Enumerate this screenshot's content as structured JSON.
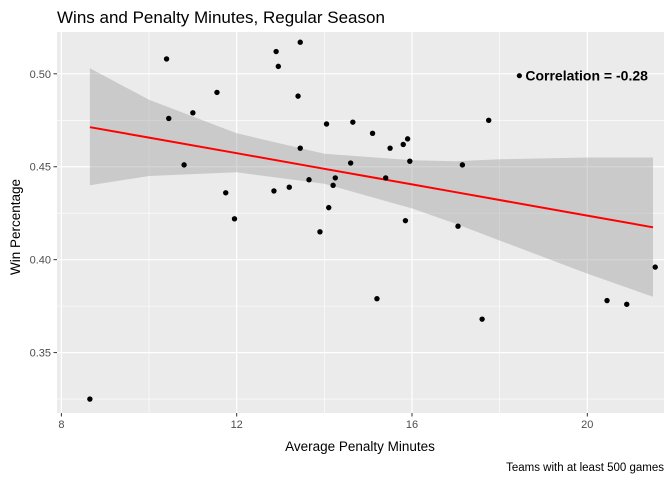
{
  "chart_data": {
    "type": "scatter",
    "title": "Wins and Penalty Minutes, Regular Season",
    "xlabel": "Average Penalty Minutes",
    "ylabel": "Win Percentage",
    "caption": "Teams with at least 500 games",
    "annotation": "Correlation = -0.28",
    "annotation_point": {
      "x": 18.45,
      "y": 0.499
    },
    "xlim": [
      7.9,
      21.75
    ],
    "ylim": [
      0.3175,
      0.5225
    ],
    "x_ticks": [
      8,
      12,
      16,
      20
    ],
    "y_ticks": [
      0.35,
      0.4,
      0.45,
      0.5
    ],
    "x_tick_labels": [
      "8",
      "12",
      "16",
      "20"
    ],
    "y_tick_labels": [
      "0.35",
      "0.40",
      "0.45",
      "0.50"
    ],
    "grid": true,
    "legend": "none",
    "colors": {
      "points": "#000000",
      "fit_line": "#ff0000",
      "ribbon": "#999999",
      "panel": "#ebebeb",
      "grid": "#ffffff"
    },
    "fit": {
      "method": "linear regression with confidence ribbon",
      "x": [
        8.65,
        10,
        12,
        14,
        16,
        17,
        18,
        20,
        21.5
      ],
      "y": [
        0.4713,
        0.4657,
        0.4573,
        0.4489,
        0.4405,
        0.4363,
        0.4321,
        0.4237,
        0.4174
      ],
      "lower": [
        0.44,
        0.445,
        0.447,
        0.4408,
        0.4276,
        0.4193,
        0.4103,
        0.3925,
        0.38
      ],
      "upper": [
        0.503,
        0.486,
        0.468,
        0.457,
        0.4535,
        0.453,
        0.454,
        0.455,
        0.455
      ]
    },
    "points": [
      {
        "x": 8.65,
        "y": 0.325
      },
      {
        "x": 10.4,
        "y": 0.508
      },
      {
        "x": 10.45,
        "y": 0.476
      },
      {
        "x": 10.8,
        "y": 0.451
      },
      {
        "x": 11.0,
        "y": 0.479
      },
      {
        "x": 11.55,
        "y": 0.49
      },
      {
        "x": 11.75,
        "y": 0.436
      },
      {
        "x": 11.95,
        "y": 0.422
      },
      {
        "x": 12.85,
        "y": 0.437
      },
      {
        "x": 12.9,
        "y": 0.512
      },
      {
        "x": 12.95,
        "y": 0.504
      },
      {
        "x": 13.2,
        "y": 0.439
      },
      {
        "x": 13.4,
        "y": 0.488
      },
      {
        "x": 13.45,
        "y": 0.517
      },
      {
        "x": 13.45,
        "y": 0.46
      },
      {
        "x": 13.65,
        "y": 0.443
      },
      {
        "x": 13.9,
        "y": 0.415
      },
      {
        "x": 14.05,
        "y": 0.473
      },
      {
        "x": 14.1,
        "y": 0.428
      },
      {
        "x": 14.2,
        "y": 0.44
      },
      {
        "x": 14.25,
        "y": 0.444
      },
      {
        "x": 14.6,
        "y": 0.452
      },
      {
        "x": 14.65,
        "y": 0.474
      },
      {
        "x": 15.1,
        "y": 0.468
      },
      {
        "x": 15.2,
        "y": 0.379
      },
      {
        "x": 15.4,
        "y": 0.444
      },
      {
        "x": 15.5,
        "y": 0.46
      },
      {
        "x": 15.8,
        "y": 0.462
      },
      {
        "x": 15.85,
        "y": 0.421
      },
      {
        "x": 15.9,
        "y": 0.465
      },
      {
        "x": 15.95,
        "y": 0.453
      },
      {
        "x": 17.05,
        "y": 0.418
      },
      {
        "x": 17.15,
        "y": 0.451
      },
      {
        "x": 17.6,
        "y": 0.368
      },
      {
        "x": 17.75,
        "y": 0.475
      },
      {
        "x": 20.45,
        "y": 0.378
      },
      {
        "x": 20.9,
        "y": 0.376
      },
      {
        "x": 21.55,
        "y": 0.396
      }
    ]
  }
}
